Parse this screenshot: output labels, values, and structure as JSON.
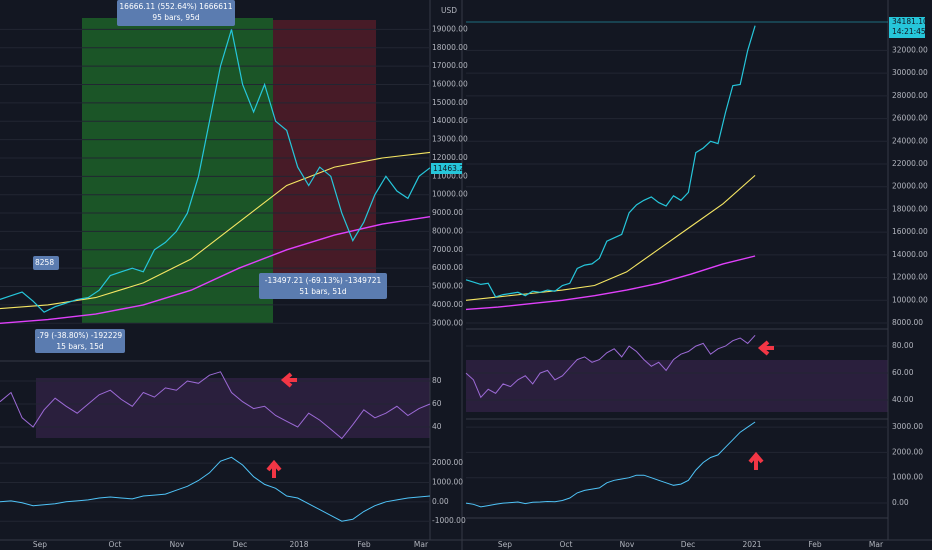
{
  "chart_data": [
    {
      "type": "line",
      "unit": "USD",
      "last_price": "11463.27",
      "xlabels": [
        "Sep",
        "Oct",
        "Nov",
        "Dec",
        "2018",
        "Feb",
        "Mar"
      ],
      "annotations": [
        "16666.11 (552.64%) 1666611",
        "95 bars, 95d",
        "-13497.21 (-69.13%) -1349721",
        "51 bars, 51d",
        ".79 (-38.80%) -192229",
        "15 bars, 15d",
        "8258"
      ],
      "ylim": [
        1000,
        20600
      ],
      "yticks": [
        {
          "value": 3000,
          "label": "3000.00"
        },
        {
          "value": 4000,
          "label": "4000.00"
        },
        {
          "value": 5000,
          "label": "5000.00"
        },
        {
          "value": 6000,
          "label": "6000.00"
        },
        {
          "value": 7000,
          "label": "7000.00"
        },
        {
          "value": 8000,
          "label": "8000.00"
        },
        {
          "value": 9000,
          "label": "9000.00"
        },
        {
          "value": 10000,
          "label": "10000.00"
        },
        {
          "value": 11000,
          "label": "11000.00"
        },
        {
          "value": 12000,
          "label": "12000.00"
        },
        {
          "value": 13000,
          "label": "13000.00"
        },
        {
          "value": 14000,
          "label": "14000.00"
        },
        {
          "value": 15000,
          "label": "15000.00"
        },
        {
          "value": 16000,
          "label": "16000.00"
        },
        {
          "value": 17000,
          "label": "17000.00"
        },
        {
          "value": 18000,
          "label": "18000.00"
        },
        {
          "value": 19000,
          "label": "19000.00"
        }
      ],
      "close": [
        4300,
        4500,
        4700,
        4200,
        3600,
        3900,
        4100,
        4300,
        4400,
        4800,
        5600,
        5800,
        6000,
        5800,
        7000,
        7400,
        8000,
        9000,
        11000,
        14000,
        17000,
        19000,
        16000,
        14500,
        16000,
        14000,
        13500,
        11500,
        10500,
        11500,
        11000,
        9000,
        7500,
        8500,
        10000,
        11000,
        10200,
        9800,
        11000,
        11463
      ],
      "ma_yellow": [
        3800,
        4000,
        4400,
        5200,
        6500,
        8500,
        10500,
        11500,
        12000,
        12300
      ],
      "ma_magenta": [
        3000,
        3200,
        3500,
        4000,
        4800,
        6000,
        7000,
        7800,
        8400,
        8800
      ],
      "rsi": {
        "ylim": [
          23.5,
          96.5
        ],
        "yticks": [
          40,
          60,
          80
        ],
        "values": [
          62,
          70,
          48,
          40,
          55,
          65,
          58,
          52,
          60,
          68,
          72,
          64,
          58,
          70,
          66,
          74,
          72,
          80,
          78,
          85,
          88,
          70,
          62,
          56,
          58,
          50,
          45,
          40,
          52,
          46,
          38,
          30,
          42,
          55,
          48,
          52,
          58,
          50,
          56,
          60
        ]
      },
      "macd": {
        "ylim": [
          -1970,
          2780
        ],
        "yticks": [
          {
            "value": -1000,
            "label": "-1000.00"
          },
          {
            "value": 0,
            "label": "0.00"
          },
          {
            "value": 1000,
            "label": "1000.00"
          },
          {
            "value": 2000,
            "label": "2000.00"
          }
        ],
        "values": [
          0,
          50,
          -50,
          -200,
          -150,
          -100,
          0,
          50,
          100,
          200,
          250,
          200,
          150,
          300,
          350,
          400,
          600,
          800,
          1100,
          1500,
          2100,
          2300,
          1900,
          1300,
          900,
          700,
          300,
          200,
          -100,
          -400,
          -700,
          -1000,
          -900,
          -500,
          -200,
          0,
          100,
          200,
          250,
          300
        ]
      }
    },
    {
      "type": "line",
      "unit": "USD",
      "last_price": "34181.10",
      "clock": "14:21:45",
      "xlabels": [
        "Sep",
        "Oct",
        "Nov",
        "Dec",
        "2021",
        "Feb",
        "Mar"
      ],
      "annotations": [],
      "ylim": [
        7560,
        36440
      ],
      "yticks": [
        {
          "value": 8000,
          "label": "8000.00"
        },
        {
          "value": 10000,
          "label": "10000.00"
        },
        {
          "value": 12000,
          "label": "12000.00"
        },
        {
          "value": 14000,
          "label": "14000.00"
        },
        {
          "value": 16000,
          "label": "16000.00"
        },
        {
          "value": 18000,
          "label": "18000.00"
        },
        {
          "value": 20000,
          "label": "20000.00"
        },
        {
          "value": 22000,
          "label": "22000.00"
        },
        {
          "value": 24000,
          "label": "24000.00"
        },
        {
          "value": 26000,
          "label": "26000.00"
        },
        {
          "value": 28000,
          "label": "28000.00"
        },
        {
          "value": 30000,
          "label": "30000.00"
        },
        {
          "value": 32000,
          "label": "32000.00"
        }
      ],
      "close": [
        11800,
        11600,
        11400,
        11500,
        10300,
        10500,
        10600,
        10700,
        10400,
        10800,
        10700,
        10900,
        10800,
        11300,
        11500,
        12800,
        13100,
        13200,
        13700,
        15200,
        15500,
        15800,
        17700,
        18400,
        18800,
        19100,
        18600,
        18300,
        19200,
        18800,
        19500,
        23000,
        23400,
        24000,
        23800,
        26500,
        28900,
        29000,
        32000,
        34181
      ],
      "ma_yellow": [
        10000,
        10300,
        10600,
        10900,
        11300,
        12500,
        14500,
        16500,
        18500,
        21000
      ],
      "ma_magenta": [
        9200,
        9400,
        9700,
        10000,
        10400,
        10900,
        11500,
        12300,
        13200,
        13900
      ],
      "rsi": {
        "ylim": [
          26.7,
          91.9
        ],
        "yticks": [
          {
            "value": 40,
            "label": "40.00"
          },
          {
            "value": 60,
            "label": "60.00"
          },
          {
            "value": 80,
            "label": "80.00"
          }
        ],
        "values": [
          60,
          55,
          42,
          48,
          45,
          52,
          50,
          55,
          58,
          52,
          60,
          62,
          55,
          58,
          64,
          70,
          72,
          68,
          70,
          75,
          78,
          72,
          80,
          76,
          70,
          65,
          68,
          62,
          70,
          74,
          76,
          80,
          82,
          74,
          78,
          80,
          84,
          86,
          82,
          88
        ]
      },
      "macd": {
        "ylim": [
          -590,
          3280
        ],
        "yticks": [
          {
            "value": 0,
            "label": "0.00"
          },
          {
            "value": 1000,
            "label": "1000.00"
          },
          {
            "value": 2000,
            "label": "2000.00"
          },
          {
            "value": 3000,
            "label": "3000.00"
          }
        ],
        "values": [
          0,
          -50,
          -150,
          -100,
          -50,
          0,
          20,
          40,
          -20,
          30,
          40,
          60,
          50,
          100,
          200,
          400,
          500,
          550,
          600,
          800,
          900,
          950,
          1000,
          1100,
          1100,
          1000,
          900,
          800,
          700,
          750,
          900,
          1300,
          1600,
          1800,
          1900,
          2200,
          2500,
          2800,
          3000,
          3200
        ]
      }
    }
  ]
}
